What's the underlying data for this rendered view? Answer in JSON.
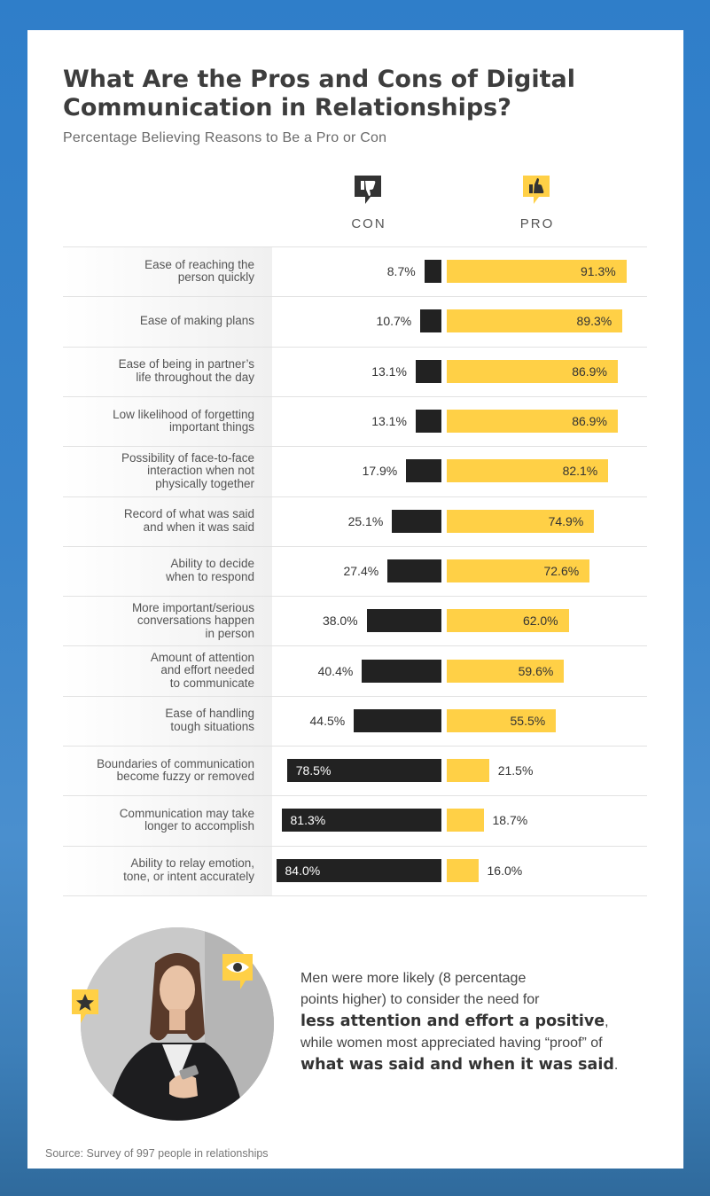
{
  "title": "What Are the Pros and Cons of Digital Communication in Relationships?",
  "subtitle": "Percentage Believing Reasons to Be a Pro or Con",
  "legend": {
    "con_label": "CON",
    "pro_label": "PRO"
  },
  "colors": {
    "con": "#222222",
    "pro": "#ffd046",
    "background": "#3b86cc"
  },
  "chart_data": {
    "type": "bar",
    "orientation": "diverging-horizontal",
    "title": "What Are the Pros and Cons of Digital Communication in Relationships?",
    "subtitle": "Percentage Believing Reasons to Be a Pro or Con",
    "categories": [
      [
        "Ease of reaching the",
        "person quickly"
      ],
      [
        "Ease of making plans"
      ],
      [
        "Ease of being in partner’s",
        "life throughout the day"
      ],
      [
        "Low likelihood of forgetting",
        "important things"
      ],
      [
        "Possibility of face-to-face",
        "interaction when not",
        "physically together"
      ],
      [
        "Record of what was said",
        "and when it was said"
      ],
      [
        "Ability to decide",
        "when to respond"
      ],
      [
        "More important/serious",
        "conversations happen",
        "in person"
      ],
      [
        "Amount of attention",
        "and effort needed",
        "to communicate"
      ],
      [
        "Ease of handling",
        "tough situations"
      ],
      [
        "Boundaries of communication",
        "become fuzzy or removed"
      ],
      [
        "Communication may take",
        "longer to accomplish"
      ],
      [
        "Ability to relay emotion,",
        "tone, or intent accurately"
      ]
    ],
    "series": [
      {
        "name": "CON",
        "values": [
          8.7,
          10.7,
          13.1,
          13.1,
          17.9,
          25.1,
          27.4,
          38.0,
          40.4,
          44.5,
          78.5,
          81.3,
          84.0
        ]
      },
      {
        "name": "PRO",
        "values": [
          91.3,
          89.3,
          86.9,
          86.9,
          82.1,
          74.9,
          72.6,
          62.0,
          59.6,
          55.5,
          21.5,
          18.7,
          16.0
        ]
      }
    ],
    "unit": "%",
    "xlim": [
      0,
      100
    ]
  },
  "callout": {
    "line1": "Men were more likely (8 percentage",
    "line2": "points higher) to consider the need for",
    "bold1": "less attention and effort a positive",
    "line3": ",",
    "line4": "while women most appreciated having “proof” of",
    "bold2": "what was said and when it was said",
    "line5": "."
  },
  "icons": {
    "con": "thumbs-down-icon",
    "pro": "thumbs-up-icon",
    "star": "star-icon",
    "eye": "eye-icon"
  },
  "source": "Source: Survey of 997 people in relationships"
}
